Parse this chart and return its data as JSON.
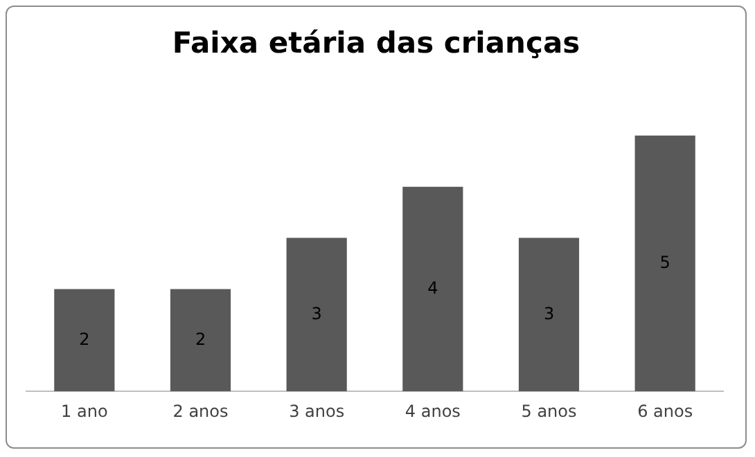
{
  "chart_data": {
    "type": "bar",
    "title": "Faixa etária das crianças",
    "categories": [
      "1 ano",
      "2 anos",
      "3 anos",
      "4 anos",
      "5 anos",
      "6 anos"
    ],
    "values": [
      2,
      2,
      3,
      4,
      3,
      5
    ],
    "color": "#595959",
    "data_labels": true
  }
}
